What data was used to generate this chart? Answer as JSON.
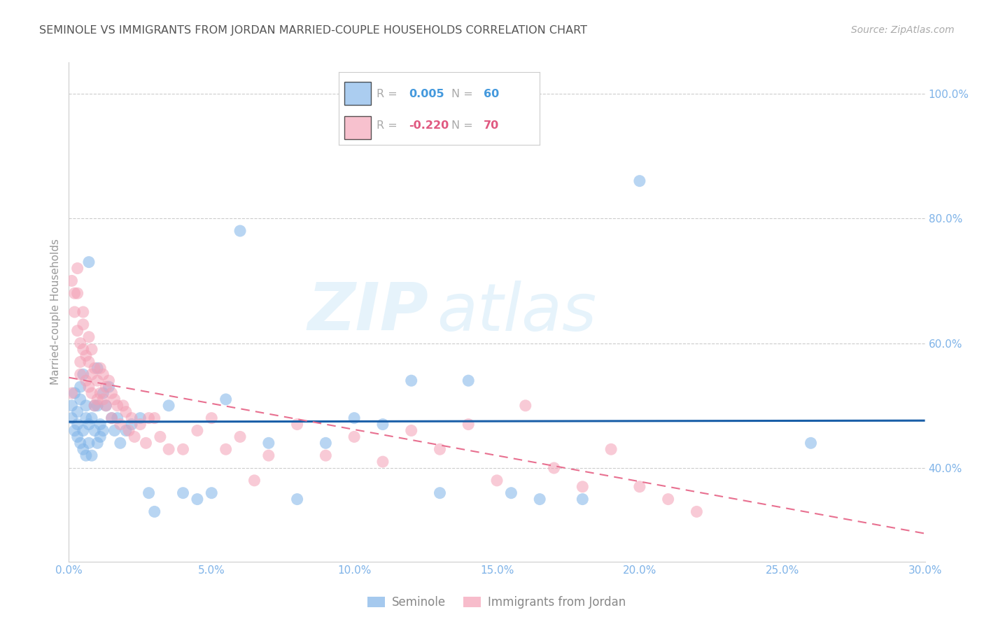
{
  "title": "SEMINOLE VS IMMIGRANTS FROM JORDAN MARRIED-COUPLE HOUSEHOLDS CORRELATION CHART",
  "source": "Source: ZipAtlas.com",
  "ylabel": "Married-couple Households",
  "x_min": 0.0,
  "x_max": 0.3,
  "y_min": 0.25,
  "y_max": 1.05,
  "x_tick_labels": [
    "0.0%",
    "5.0%",
    "10.0%",
    "15.0%",
    "20.0%",
    "25.0%",
    "30.0%"
  ],
  "y_tick_labels": [
    "100.0%",
    "80.0%",
    "60.0%",
    "40.0%"
  ],
  "y_tick_values": [
    1.0,
    0.8,
    0.6,
    0.4
  ],
  "x_tick_values": [
    0.0,
    0.05,
    0.1,
    0.15,
    0.2,
    0.25,
    0.3
  ],
  "blue_R": "0.005",
  "blue_N": "60",
  "pink_R": "-0.220",
  "pink_N": "70",
  "blue_color": "#7fb3e8",
  "pink_color": "#f4a0b5",
  "blue_line_color": "#1a5fa8",
  "pink_line_color": "#e87090",
  "grid_color": "#cccccc",
  "title_color": "#555555",
  "axis_label_color": "#7fb3e8",
  "watermark_zip": "ZIP",
  "watermark_atlas": "atlas",
  "legend_label_blue": "Seminole",
  "legend_label_pink": "Immigrants from Jordan",
  "blue_scatter_x": [
    0.001,
    0.001,
    0.002,
    0.002,
    0.003,
    0.003,
    0.003,
    0.004,
    0.004,
    0.004,
    0.005,
    0.005,
    0.005,
    0.006,
    0.006,
    0.006,
    0.007,
    0.007,
    0.007,
    0.008,
    0.008,
    0.009,
    0.009,
    0.01,
    0.01,
    0.01,
    0.011,
    0.011,
    0.012,
    0.012,
    0.013,
    0.014,
    0.015,
    0.016,
    0.017,
    0.018,
    0.02,
    0.022,
    0.025,
    0.028,
    0.03,
    0.035,
    0.04,
    0.045,
    0.05,
    0.055,
    0.06,
    0.07,
    0.08,
    0.09,
    0.1,
    0.11,
    0.12,
    0.13,
    0.14,
    0.155,
    0.165,
    0.18,
    0.2,
    0.26
  ],
  "blue_scatter_y": [
    0.48,
    0.5,
    0.52,
    0.46,
    0.45,
    0.49,
    0.47,
    0.51,
    0.44,
    0.53,
    0.43,
    0.55,
    0.46,
    0.48,
    0.42,
    0.5,
    0.73,
    0.44,
    0.47,
    0.48,
    0.42,
    0.5,
    0.46,
    0.5,
    0.44,
    0.56,
    0.47,
    0.45,
    0.52,
    0.46,
    0.5,
    0.53,
    0.48,
    0.46,
    0.48,
    0.44,
    0.46,
    0.47,
    0.48,
    0.36,
    0.33,
    0.5,
    0.36,
    0.35,
    0.36,
    0.51,
    0.78,
    0.44,
    0.35,
    0.44,
    0.48,
    0.47,
    0.54,
    0.36,
    0.54,
    0.36,
    0.35,
    0.35,
    0.86,
    0.44
  ],
  "pink_scatter_x": [
    0.001,
    0.001,
    0.002,
    0.002,
    0.003,
    0.003,
    0.003,
    0.004,
    0.004,
    0.004,
    0.005,
    0.005,
    0.005,
    0.006,
    0.006,
    0.007,
    0.007,
    0.007,
    0.008,
    0.008,
    0.008,
    0.009,
    0.009,
    0.01,
    0.01,
    0.011,
    0.011,
    0.012,
    0.012,
    0.013,
    0.013,
    0.014,
    0.015,
    0.015,
    0.016,
    0.017,
    0.018,
    0.019,
    0.02,
    0.021,
    0.022,
    0.023,
    0.025,
    0.027,
    0.028,
    0.03,
    0.032,
    0.035,
    0.04,
    0.045,
    0.05,
    0.055,
    0.06,
    0.065,
    0.07,
    0.08,
    0.09,
    0.1,
    0.11,
    0.12,
    0.13,
    0.14,
    0.15,
    0.16,
    0.17,
    0.18,
    0.19,
    0.2,
    0.21,
    0.22
  ],
  "pink_scatter_y": [
    0.52,
    0.7,
    0.68,
    0.65,
    0.68,
    0.62,
    0.72,
    0.6,
    0.57,
    0.55,
    0.65,
    0.63,
    0.59,
    0.58,
    0.54,
    0.61,
    0.57,
    0.53,
    0.59,
    0.55,
    0.52,
    0.56,
    0.5,
    0.54,
    0.51,
    0.56,
    0.52,
    0.55,
    0.51,
    0.53,
    0.5,
    0.54,
    0.52,
    0.48,
    0.51,
    0.5,
    0.47,
    0.5,
    0.49,
    0.46,
    0.48,
    0.45,
    0.47,
    0.44,
    0.48,
    0.48,
    0.45,
    0.43,
    0.43,
    0.46,
    0.48,
    0.43,
    0.45,
    0.38,
    0.42,
    0.47,
    0.42,
    0.45,
    0.41,
    0.46,
    0.43,
    0.47,
    0.38,
    0.5,
    0.4,
    0.37,
    0.43,
    0.37,
    0.35,
    0.33
  ],
  "blue_trend_y0": 0.474,
  "blue_trend_y1": 0.476,
  "pink_trend_y0": 0.545,
  "pink_trend_y1": 0.295
}
